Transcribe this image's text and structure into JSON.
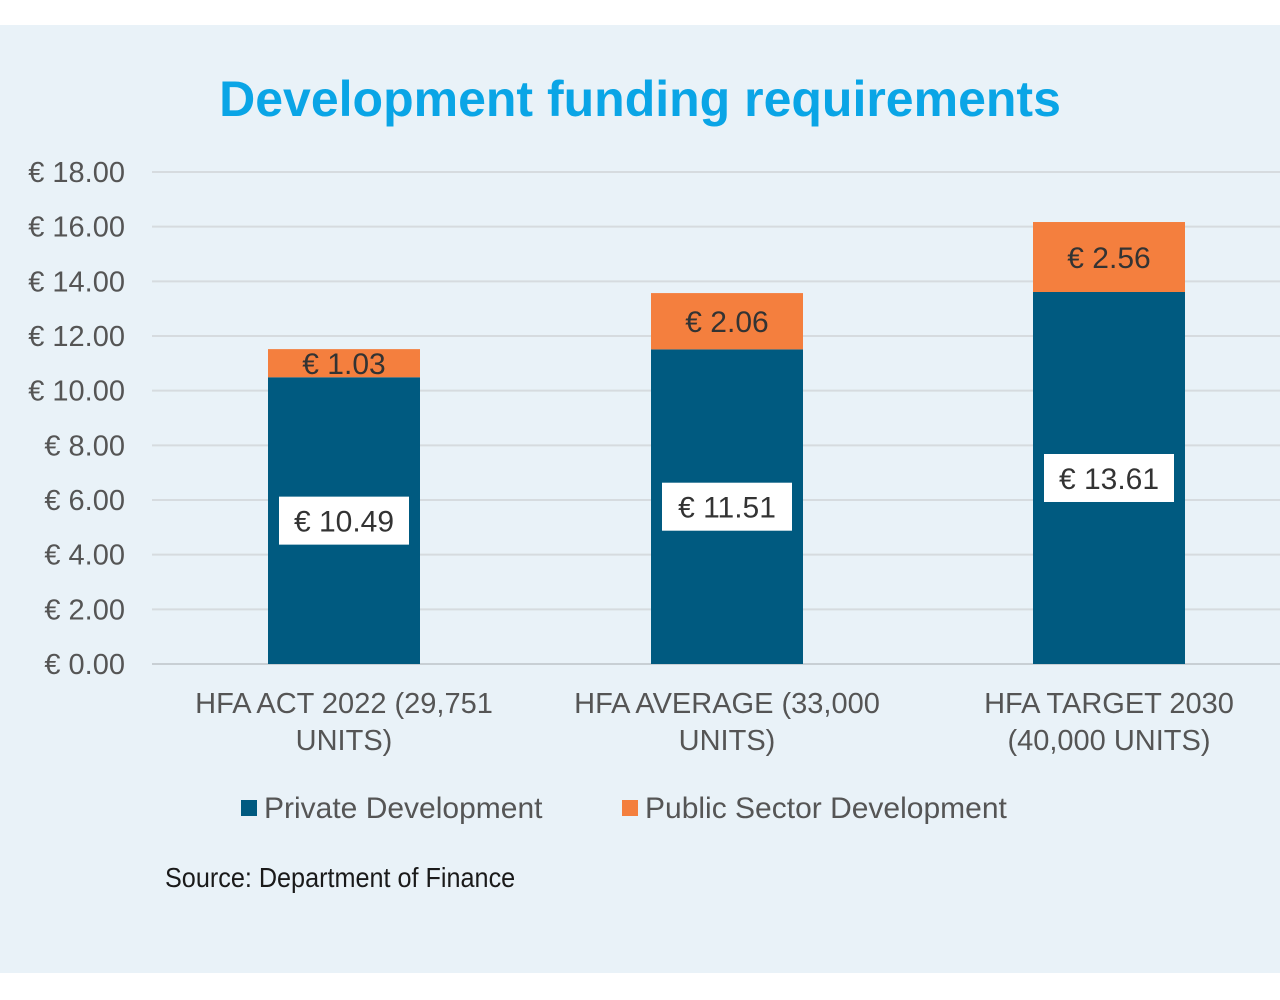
{
  "chart_data": {
    "type": "bar",
    "stacked": true,
    "title": "Development funding requirements",
    "categories": [
      [
        "HFA ACT 2022 (29,751",
        "UNITS)"
      ],
      [
        "HFA AVERAGE (33,000",
        "UNITS)"
      ],
      [
        "HFA TARGET 2030",
        "(40,000 UNITS)"
      ]
    ],
    "series": [
      {
        "name": "Private Development",
        "color": "#005a80",
        "values": [
          10.49,
          11.51,
          13.61
        ],
        "labels": [
          "€ 10.49",
          "€ 11.51",
          "€ 13.61"
        ]
      },
      {
        "name": "Public Sector Development",
        "color": "#f47f3e",
        "values": [
          1.03,
          2.06,
          2.56
        ],
        "labels": [
          "€ 1.03",
          "€ 2.06",
          "€ 2.56"
        ]
      }
    ],
    "ylim": [
      0,
      18
    ],
    "yticks": [
      {
        "value": 0,
        "label": "€ 0.00"
      },
      {
        "value": 2,
        "label": "€ 2.00"
      },
      {
        "value": 4,
        "label": "€ 4.00"
      },
      {
        "value": 6,
        "label": "€ 6.00"
      },
      {
        "value": 8,
        "label": "€ 8.00"
      },
      {
        "value": 10,
        "label": "€ 10.00"
      },
      {
        "value": 12,
        "label": "€ 12.00"
      },
      {
        "value": 14,
        "label": "€ 14.00"
      },
      {
        "value": 16,
        "label": "€ 16.00"
      },
      {
        "value": 18,
        "label": "€ 18.00"
      }
    ],
    "grid": true,
    "legend_position": "bottom"
  },
  "source": "Source: Department of Finance"
}
